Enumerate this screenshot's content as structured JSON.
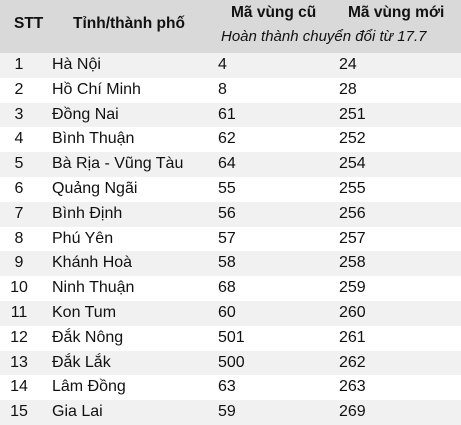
{
  "header": {
    "stt": "STT",
    "province": "Tỉnh/thành phố",
    "old_code": "Mã vùng cũ",
    "new_code": "Mã vùng mới",
    "note": "Hoàn thành chuyển đổi từ 17.7"
  },
  "rows": [
    {
      "stt": "1",
      "province": "Hà Nội",
      "old": "4",
      "new": "24"
    },
    {
      "stt": "2",
      "province": "Hồ Chí Minh",
      "old": "8",
      "new": "28"
    },
    {
      "stt": "3",
      "province": "Đồng Nai",
      "old": "61",
      "new": "251"
    },
    {
      "stt": "4",
      "province": "Bình Thuận",
      "old": "62",
      "new": "252"
    },
    {
      "stt": "5",
      "province": "Bà Rịa - Vũng Tàu",
      "old": "64",
      "new": "254"
    },
    {
      "stt": "6",
      "province": "Quảng Ngãi",
      "old": "55",
      "new": "255"
    },
    {
      "stt": "7",
      "province": "Bình Định",
      "old": "56",
      "new": "256"
    },
    {
      "stt": "8",
      "province": "Phú Yên",
      "old": "57",
      "new": "257"
    },
    {
      "stt": "9",
      "province": "Khánh Hoà",
      "old": "58",
      "new": "258"
    },
    {
      "stt": "10",
      "province": "Ninh Thuận",
      "old": "68",
      "new": "259"
    },
    {
      "stt": "11",
      "province": "Kon Tum",
      "old": "60",
      "new": "260"
    },
    {
      "stt": "12",
      "province": "Đắk Nông",
      "old": "501",
      "new": "261"
    },
    {
      "stt": "13",
      "province": "Đắk Lắk",
      "old": "500",
      "new": "262"
    },
    {
      "stt": "14",
      "province": "Lâm Đồng",
      "old": "63",
      "new": "263"
    },
    {
      "stt": "15",
      "province": "Gia Lai",
      "old": "59",
      "new": "269"
    }
  ]
}
